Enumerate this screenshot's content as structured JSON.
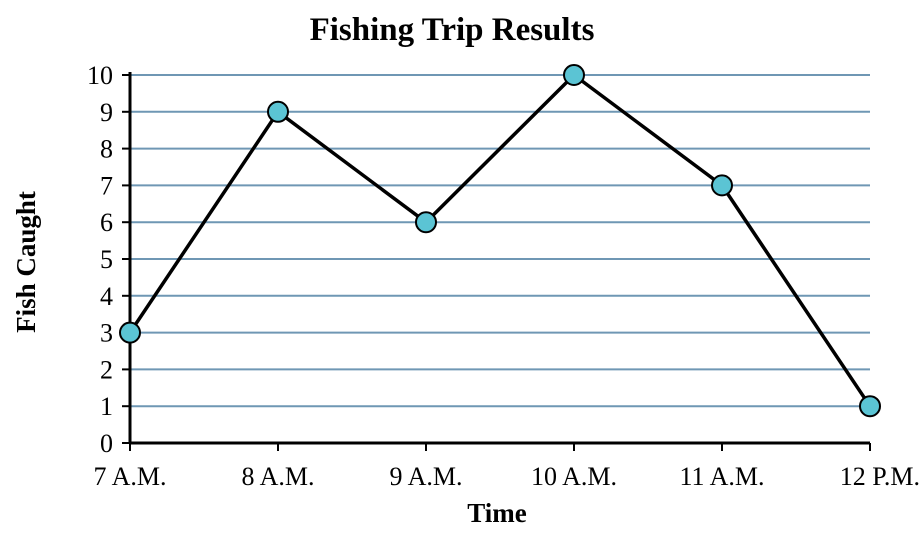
{
  "chart_data": {
    "type": "line",
    "title": "Fishing Trip Results",
    "xlabel": "Time",
    "ylabel": "Fish Caught",
    "categories": [
      "7 A.M.",
      "8 A.M.",
      "9 A.M.",
      "10 A.M.",
      "11 A.M.",
      "12 P.M."
    ],
    "series": [
      {
        "values": [
          3,
          9,
          6,
          10,
          7,
          1
        ]
      }
    ],
    "ylim": [
      0,
      10
    ],
    "yticks": [
      "0",
      "1",
      "2",
      "3",
      "4",
      "5",
      "6",
      "7",
      "8",
      "9",
      "10"
    ],
    "grid": "horizontal",
    "colors": {
      "gridline": "#6f97b4",
      "line": "#000000",
      "marker_fill": "#5bc4d4",
      "marker_stroke": "#000000",
      "axis": "#000000"
    }
  }
}
